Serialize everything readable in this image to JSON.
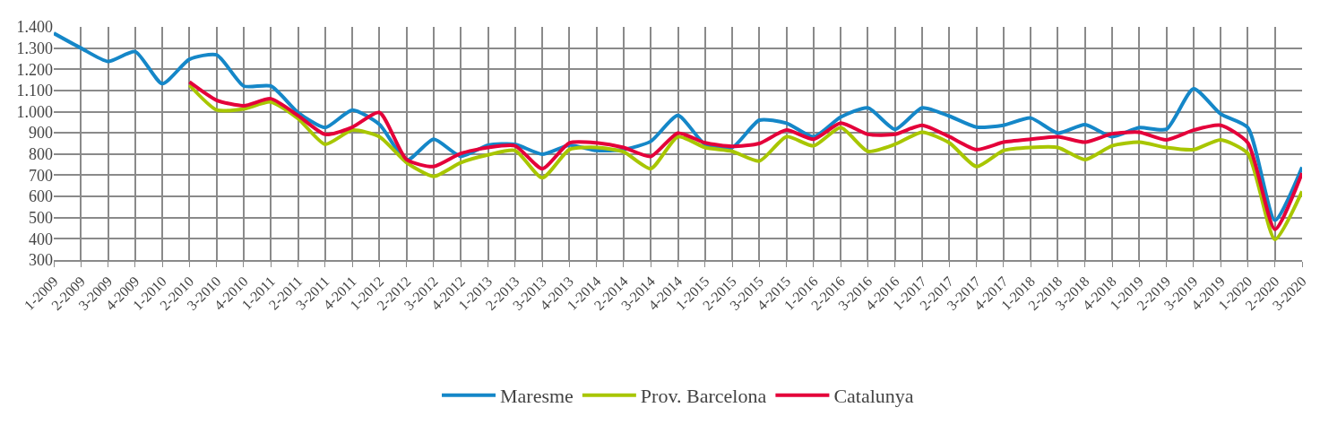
{
  "chart_data": {
    "type": "line",
    "categories": [
      "1-2009",
      "2-2009",
      "3-2009",
      "4-2009",
      "1-2010",
      "2-2010",
      "3-2010",
      "4-2010",
      "1-2011",
      "2-2011",
      "3-2011",
      "4-2011",
      "1-2012",
      "2-2012",
      "3-2012",
      "4-2012",
      "1-2013",
      "2-2013",
      "3-2013",
      "4-2013",
      "1-2014",
      "2-2014",
      "3-2014",
      "4-2014",
      "1-2015",
      "2-2015",
      "3-2015",
      "4-2015",
      "1-2016",
      "2-2016",
      "3-2016",
      "4-2016",
      "1-2017",
      "2-2017",
      "3-2017",
      "4-2017",
      "1-2018",
      "2-2018",
      "3-2018",
      "4-2018",
      "1-2019",
      "2-2019",
      "3-2019",
      "4-2019",
      "1-2020",
      "2-2020",
      "3-2020"
    ],
    "series": [
      {
        "name": "Maresme",
        "color": "#1587c8",
        "values": [
          1370,
          1300,
          1237,
          1283,
          1132,
          1247,
          1268,
          1121,
          1121,
          996,
          925,
          1008,
          940,
          770,
          870,
          789,
          842,
          846,
          799,
          842,
          817,
          821,
          860,
          982,
          846,
          831,
          960,
          946,
          882,
          975,
          1018,
          917,
          1018,
          979,
          927,
          936,
          970,
          899,
          939,
          882,
          925,
          917,
          1108,
          989,
          925,
          488,
          738
        ]
      },
      {
        "name": "Prov. Barcelona",
        "color": "#a8c600",
        "values": [
          null,
          null,
          null,
          null,
          null,
          1125,
          1008,
          1013,
          1046,
          968,
          846,
          913,
          882,
          760,
          695,
          760,
          796,
          817,
          688,
          821,
          831,
          810,
          731,
          882,
          831,
          813,
          767,
          882,
          839,
          925,
          813,
          846,
          903,
          853,
          741,
          817,
          831,
          831,
          774,
          839,
          856,
          831,
          821,
          867,
          803,
          397,
          624
        ]
      },
      {
        "name": "Catalunya",
        "color": "#e4003a",
        "values": [
          null,
          null,
          null,
          null,
          null,
          1140,
          1054,
          1028,
          1061,
          982,
          893,
          927,
          996,
          774,
          741,
          803,
          831,
          839,
          731,
          853,
          853,
          831,
          789,
          899,
          853,
          836,
          850,
          913,
          870,
          946,
          893,
          893,
          936,
          882,
          821,
          856,
          870,
          882,
          856,
          896,
          903,
          867,
          913,
          936,
          853,
          445,
          710
        ]
      }
    ],
    "ylim": [
      300,
      1400
    ],
    "yticks": [
      {
        "value": 300,
        "label": "300"
      },
      {
        "value": 400,
        "label": "400"
      },
      {
        "value": 500,
        "label": "500"
      },
      {
        "value": 600,
        "label": "600"
      },
      {
        "value": 700,
        "label": "700"
      },
      {
        "value": 800,
        "label": "800"
      },
      {
        "value": 900,
        "label": "900"
      },
      {
        "value": 1000,
        "label": "1.000"
      },
      {
        "value": 1100,
        "label": "1.100"
      },
      {
        "value": 1200,
        "label": "1.200"
      },
      {
        "value": 1300,
        "label": "1.300"
      },
      {
        "value": 1400,
        "label": "1.400"
      }
    ],
    "grid": true,
    "legend": "bottom",
    "line_style": "solid",
    "marker": "none"
  }
}
